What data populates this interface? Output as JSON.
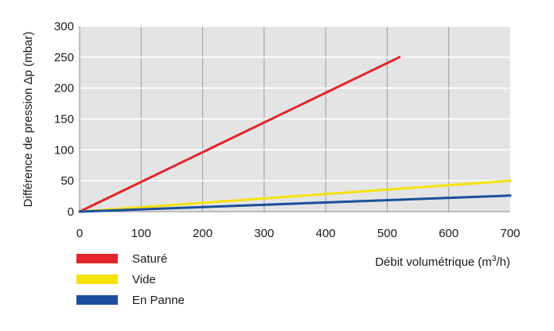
{
  "chart_data": {
    "type": "line",
    "xlabel_prefix": "Débit volumétrique (m",
    "xlabel_sup": "3",
    "xlabel_suffix": "/h)",
    "ylabel": "Différence de pression  Δp (mbar)",
    "xlim": [
      0,
      700
    ],
    "ylim": [
      0,
      300
    ],
    "x_ticks": [
      "0",
      "100",
      "200",
      "300",
      "400",
      "500",
      "600",
      "700"
    ],
    "y_ticks": [
      "0",
      "50",
      "100",
      "150",
      "200",
      "250",
      "300"
    ],
    "grid": true,
    "legend_position": "bottom-left",
    "series": [
      {
        "name": "Saturé",
        "color": "#e3262b",
        "x": [
          0,
          520
        ],
        "y": [
          0,
          250
        ]
      },
      {
        "name": "Vide",
        "color": "#f5e20b",
        "x": [
          0,
          700
        ],
        "y": [
          0,
          50
        ]
      },
      {
        "name": "En Panne",
        "color": "#1b4f9c",
        "x": [
          0,
          700
        ],
        "y": [
          0,
          26
        ]
      }
    ]
  }
}
